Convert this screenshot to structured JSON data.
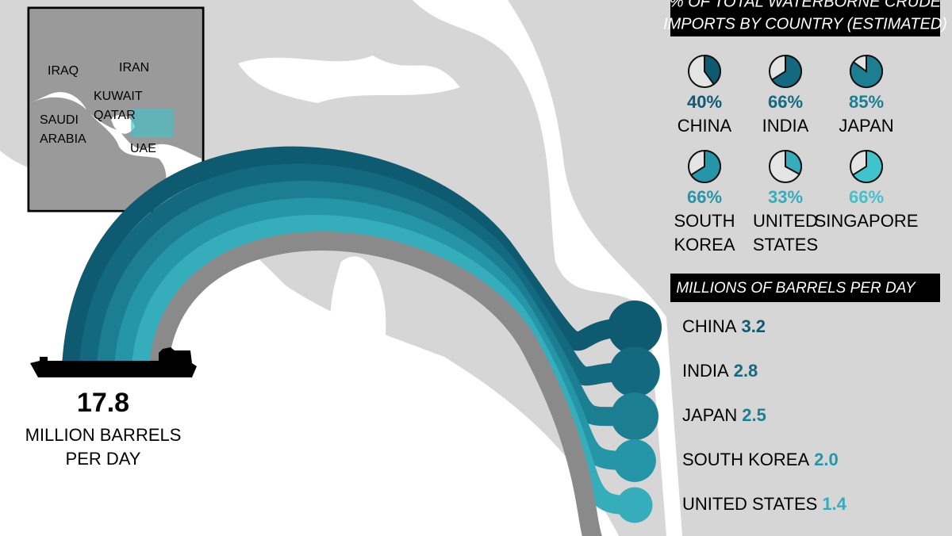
{
  "inset_map": {
    "labels": [
      {
        "lines": [
          "IRAQ"
        ]
      },
      {
        "lines": [
          "IRAN"
        ]
      },
      {
        "lines": [
          "KUWAIT"
        ]
      },
      {
        "lines": [
          "QATAR"
        ]
      },
      {
        "lines": [
          "SAUDI",
          "ARABIA"
        ]
      },
      {
        "lines": [
          "UAE"
        ]
      }
    ]
  },
  "total": {
    "value": 17.8,
    "label_lines": [
      "MILLION BARRELS",
      "PER DAY"
    ]
  },
  "import_share": {
    "title_lines": [
      "% OF TOTAL WATERBORNE CRUDE",
      "IMPORTS BY COUNTRY (ESTIMATED)"
    ],
    "items": [
      {
        "country_lines": [
          "CHINA"
        ],
        "percent": 40,
        "percent_label": "40%",
        "color": "#0e5a70"
      },
      {
        "country_lines": [
          "INDIA"
        ],
        "percent": 66,
        "percent_label": "66%",
        "color": "#136a80"
      },
      {
        "country_lines": [
          "JAPAN"
        ],
        "percent": 85,
        "percent_label": "85%",
        "color": "#1b7f91"
      },
      {
        "country_lines": [
          "SOUTH",
          "KOREA"
        ],
        "percent": 66,
        "percent_label": "66%",
        "color": "#2596a8"
      },
      {
        "country_lines": [
          "UNITED",
          "STATES"
        ],
        "percent": 33,
        "percent_label": "33%",
        "color": "#35adbb"
      },
      {
        "country_lines": [
          "SINGAPORE"
        ],
        "percent": 66,
        "percent_label": "66%",
        "color": "#41c3cc"
      }
    ]
  },
  "barrels": {
    "title": "MILLIONS OF BARRELS PER DAY",
    "items": [
      {
        "country": "CHINA",
        "value": 3.2,
        "value_label": "3.2",
        "color": "#0e5a70"
      },
      {
        "country": "INDIA",
        "value": 2.8,
        "value_label": "2.8",
        "color": "#136a80"
      },
      {
        "country": "JAPAN",
        "value": 2.5,
        "value_label": "2.5",
        "color": "#1b7f91"
      },
      {
        "country": "SOUTH KOREA",
        "value": 2.0,
        "value_label": "2.0",
        "color": "#2596a8"
      },
      {
        "country": "UNITED STATES",
        "value": 1.4,
        "value_label": "1.4",
        "color": "#35adbb"
      }
    ]
  }
}
